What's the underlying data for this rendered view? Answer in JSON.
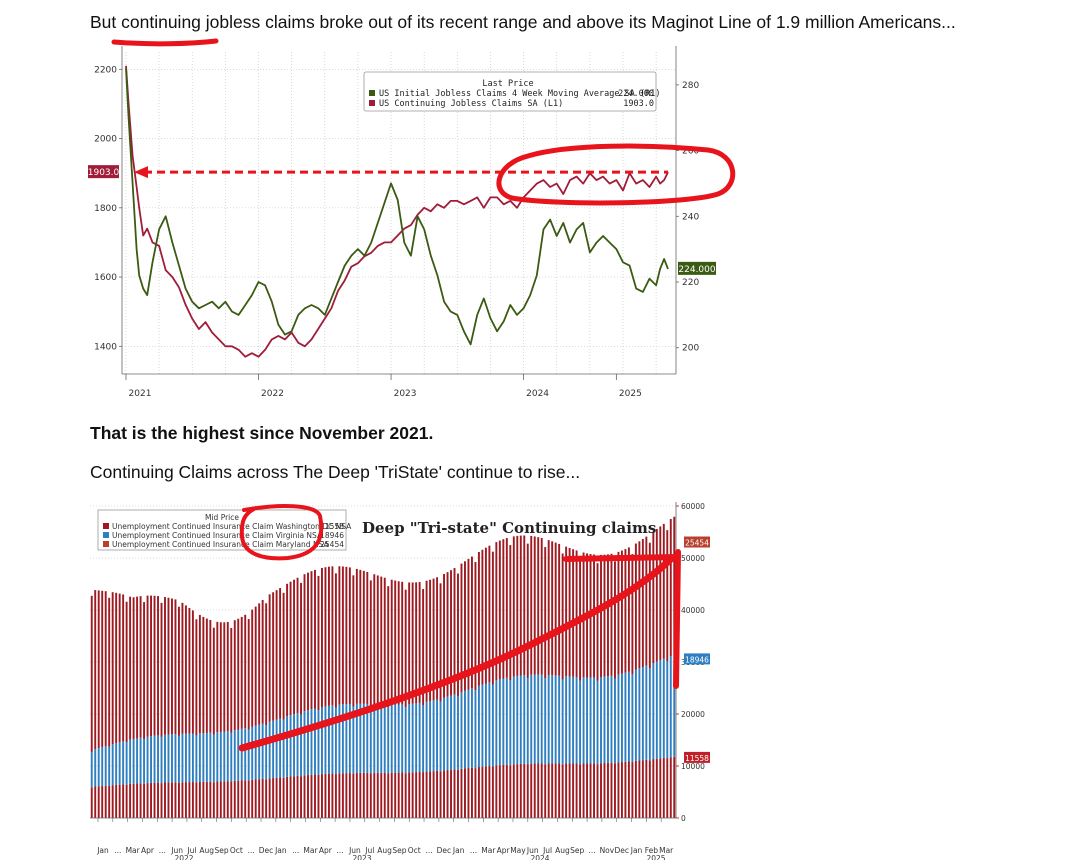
{
  "text": {
    "p1": "But continuing jobless claims broke out of its recent range and above its Maginot Line of 1.9 million Americans...",
    "p2": "That is the highest since November 2021.",
    "p3": "Continuing Claims across The Deep 'TriState' continue to rise..."
  },
  "colors": {
    "continuing": "#a01d3a",
    "initial": "#3b5a12",
    "dc": "#9e1b22",
    "va": "#2f7fc0",
    "md": "#9e1b22",
    "annotation": "#e8141c"
  },
  "chart_data": [
    {
      "type": "line",
      "legend_title": "Last Price",
      "legend_placement": "top-right",
      "x_ticks": [
        "2021",
        "2022",
        "2023",
        "2024",
        "2025"
      ],
      "x_tick_values": [
        2021.0,
        2022.0,
        2023.0,
        2024.0,
        2024.7
      ],
      "xlim": [
        2020.97,
        2025.15
      ],
      "left_axis": {
        "ticks": [
          "1400",
          "1600",
          "1800",
          "2000",
          "2200"
        ],
        "tick_values": [
          1400,
          1600,
          1800,
          2000,
          2200
        ],
        "ylim": [
          1320,
          2250
        ]
      },
      "right_axis": {
        "ticks": [
          "200",
          "220",
          "240",
          "260",
          "280"
        ],
        "tick_values": [
          200,
          220,
          240,
          260,
          280
        ],
        "ylim": [
          192,
          290
        ]
      },
      "series": [
        {
          "name": "US Continuing Jobless Claims SA (L1)",
          "axis": "left",
          "last_value": "1903.0",
          "x": [
            2021.0,
            2021.02,
            2021.05,
            2021.08,
            2021.1,
            2021.13,
            2021.16,
            2021.2,
            2021.25,
            2021.3,
            2021.35,
            2021.4,
            2021.45,
            2021.5,
            2021.55,
            2021.6,
            2021.65,
            2021.7,
            2021.75,
            2021.8,
            2021.85,
            2021.9,
            2021.95,
            2022.0,
            2022.05,
            2022.1,
            2022.15,
            2022.2,
            2022.25,
            2022.3,
            2022.35,
            2022.4,
            2022.45,
            2022.5,
            2022.55,
            2022.6,
            2022.65,
            2022.7,
            2022.75,
            2022.8,
            2022.85,
            2022.9,
            2022.95,
            2023.0,
            2023.05,
            2023.1,
            2023.15,
            2023.2,
            2023.25,
            2023.3,
            2023.35,
            2023.4,
            2023.45,
            2023.5,
            2023.55,
            2023.6,
            2023.65,
            2023.7,
            2023.75,
            2023.8,
            2023.85,
            2023.9,
            2023.95,
            2024.0,
            2024.05,
            2024.1,
            2024.15,
            2024.2,
            2024.25,
            2024.3,
            2024.35,
            2024.4,
            2024.45,
            2024.5,
            2024.55,
            2024.6,
            2024.65,
            2024.7,
            2024.75,
            2024.8,
            2024.85,
            2024.9,
            2024.95,
            2025.0,
            2025.03,
            2025.06,
            2025.09
          ],
          "values": [
            2210,
            2100,
            1950,
            1860,
            1800,
            1720,
            1740,
            1700,
            1690,
            1620,
            1600,
            1570,
            1520,
            1480,
            1450,
            1470,
            1440,
            1420,
            1400,
            1400,
            1390,
            1370,
            1380,
            1370,
            1390,
            1420,
            1430,
            1420,
            1440,
            1410,
            1400,
            1420,
            1450,
            1480,
            1510,
            1560,
            1590,
            1630,
            1640,
            1660,
            1670,
            1690,
            1700,
            1700,
            1720,
            1740,
            1750,
            1780,
            1800,
            1790,
            1810,
            1800,
            1820,
            1820,
            1810,
            1820,
            1830,
            1800,
            1830,
            1830,
            1810,
            1820,
            1800,
            1830,
            1850,
            1870,
            1880,
            1860,
            1870,
            1840,
            1880,
            1890,
            1870,
            1900,
            1880,
            1890,
            1870,
            1880,
            1850,
            1900,
            1870,
            1880,
            1860,
            1890,
            1870,
            1880,
            1903
          ]
        },
        {
          "name": "US Initial Jobless Claims 4 Week Moving Average SA (R1)",
          "axis": "right",
          "last_value": "224.000",
          "x": [
            2021.0,
            2021.02,
            2021.05,
            2021.08,
            2021.1,
            2021.13,
            2021.16,
            2021.2,
            2021.25,
            2021.3,
            2021.35,
            2021.4,
            2021.45,
            2021.5,
            2021.55,
            2021.6,
            2021.65,
            2021.7,
            2021.75,
            2021.8,
            2021.85,
            2021.9,
            2021.95,
            2022.0,
            2022.05,
            2022.1,
            2022.15,
            2022.2,
            2022.25,
            2022.3,
            2022.35,
            2022.4,
            2022.45,
            2022.5,
            2022.55,
            2022.6,
            2022.65,
            2022.7,
            2022.75,
            2022.8,
            2022.85,
            2022.9,
            2022.95,
            2023.0,
            2023.05,
            2023.1,
            2023.15,
            2023.2,
            2023.25,
            2023.3,
            2023.35,
            2023.4,
            2023.45,
            2023.5,
            2023.55,
            2023.6,
            2023.65,
            2023.7,
            2023.75,
            2023.8,
            2023.85,
            2023.9,
            2023.95,
            2024.0,
            2024.05,
            2024.1,
            2024.15,
            2024.2,
            2024.25,
            2024.3,
            2024.35,
            2024.4,
            2024.45,
            2024.5,
            2024.55,
            2024.6,
            2024.65,
            2024.7,
            2024.75,
            2024.8,
            2024.85,
            2024.9,
            2024.95,
            2025.0,
            2025.03,
            2025.06,
            2025.09
          ],
          "values": [
            285,
            270,
            250,
            230,
            222,
            218,
            216,
            226,
            236,
            240,
            232,
            225,
            218,
            214,
            212,
            213,
            214,
            212,
            214,
            211,
            210,
            213,
            216,
            220,
            219,
            214,
            207,
            204,
            205,
            210,
            212,
            213,
            212,
            210,
            215,
            220,
            225,
            228,
            230,
            228,
            232,
            238,
            244,
            250,
            245,
            232,
            228,
            240,
            236,
            228,
            222,
            214,
            211,
            210,
            205,
            201,
            210,
            215,
            209,
            205,
            208,
            213,
            210,
            212,
            216,
            222,
            236,
            239,
            234,
            238,
            232,
            236,
            238,
            229,
            232,
            234,
            232,
            230,
            226,
            225,
            218,
            217,
            221,
            219,
            224,
            227,
            224
          ]
        }
      ],
      "reference_level": 1903.0
    },
    {
      "type": "bar",
      "stacked": true,
      "title": "Deep \"Tri-state\" Continuing claims",
      "legend_title": "Mid Price",
      "legend_placement": "top-left",
      "ylim": [
        0,
        60000
      ],
      "y_ticks": [
        "0",
        "10000",
        "20000",
        "30000",
        "40000",
        "50000",
        "60000"
      ],
      "x_labels": [
        "Jan",
        "...",
        "Mar",
        "Apr",
        "...",
        "Jun",
        "Jul",
        "Aug",
        "Sep",
        "Oct",
        "...",
        "Dec",
        "Jan",
        "...",
        "Mar",
        "Apr",
        "...",
        "Jun",
        "Jul",
        "Aug",
        "Sep",
        "Oct",
        "...",
        "Dec",
        "Jan",
        "...",
        "Mar",
        "Apr",
        "May",
        "Jun",
        "Jul",
        "Aug",
        "Sep",
        "...",
        "Nov",
        "Dec",
        "Jan",
        "Feb",
        "Mar"
      ],
      "year_labels": [
        "2022",
        "2023",
        "2024",
        "2025"
      ],
      "n_bars": 168,
      "series": [
        {
          "name": "Unemployment Continued Insurance Claim Washington DC NSA",
          "last_value": "11558",
          "start": 6000,
          "end": 11558
        },
        {
          "name": "Unemployment Continued Insurance Claim Virginia NSA",
          "last_value": "18946",
          "start": 7000,
          "end": 18946
        },
        {
          "name": "Unemployment Continued Insurance Claim Maryland NSA",
          "last_value": "25454",
          "start": 26000,
          "end": 25454
        }
      ],
      "total_start": 39000,
      "total_end": 55958
    }
  ]
}
